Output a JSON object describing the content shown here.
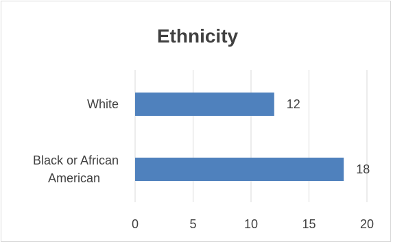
{
  "chart_data": {
    "type": "bar",
    "orientation": "horizontal",
    "title": "Ethnicity",
    "categories": [
      "White",
      "Black or African American"
    ],
    "category_lines": [
      [
        "White"
      ],
      [
        "Black or African",
        "American"
      ]
    ],
    "values": [
      12,
      18
    ],
    "xlim": [
      0,
      20
    ],
    "xticks": [
      0,
      5,
      10,
      15,
      20
    ],
    "xtick_labels": [
      "0",
      "5",
      "10",
      "15",
      "20"
    ],
    "data_labels": [
      "12",
      "18"
    ],
    "bar_color": "#4f81bd",
    "grid_color": "#d9d9d9",
    "gridlines": "vertical",
    "legend": "none"
  }
}
